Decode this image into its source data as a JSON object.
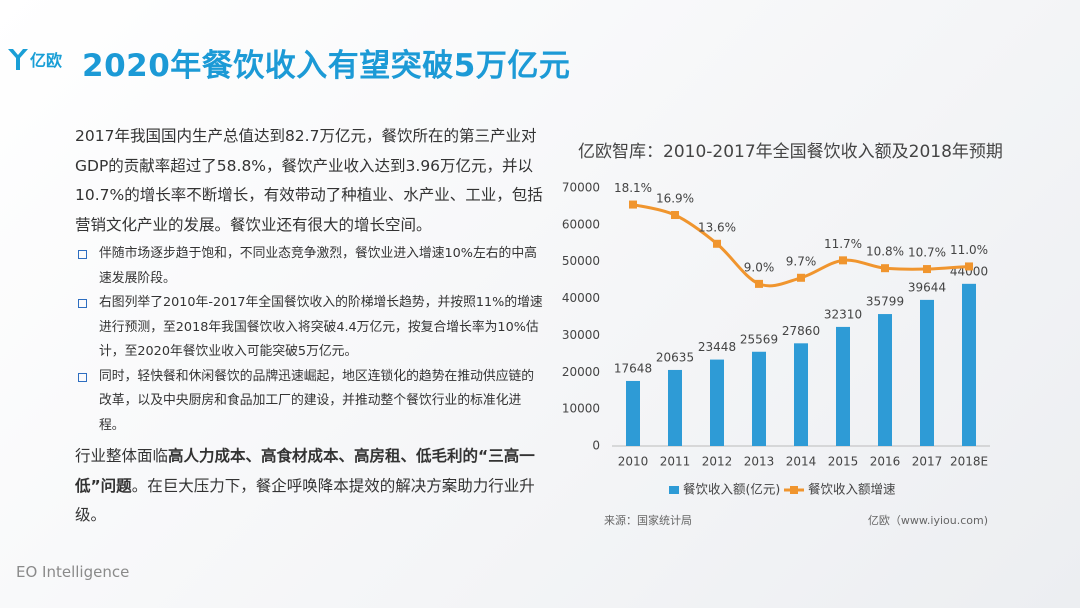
{
  "header": {
    "logo": "亿欧",
    "title": "2020年餐饮收入有望突破5万亿元"
  },
  "body": {
    "intro": "2017年我国国内生产总值达到82.7万亿元，餐饮所在的第三产业对GDP的贡献率超过了58.8%，餐饮产业收入达到3.96万亿元，并以10.7%的增长率不断增长，有效带动了种植业、水产业、工业，包括营销文化产业的发展。餐饮业还有很大的增长空间。",
    "bullets": [
      "伴随市场逐步趋于饱和，不同业态竞争激烈，餐饮业进入增速10%左右的中高速发展阶段。",
      "右图列举了2010年-2017年全国餐饮收入的阶梯增长趋势，并按照11%的增速进行预测，至2018年我国餐饮收入将突破4.4万亿元，按复合增长率为10%估计，至2020年餐饮业收入可能突破5万亿元。",
      "同时，轻快餐和休闲餐饮的品牌迅速崛起，地区连锁化的趋势在推动供应链的改革，以及中央厨房和食品加工厂的建设，并推动整个餐饮行业的标准化进程。"
    ],
    "closing": [
      "行业整体面临",
      "高人力成本、高食材成本、高房租、低毛利的“三高一低”问题",
      "。在巨大压力下，餐企呼唤降本提效的解决方案助力行业升级。"
    ]
  },
  "footer": "EO Intelligence",
  "chart_data": {
    "type": "bar",
    "title": "亿欧智库：2010-2017年全国餐饮收入额及2018年预期",
    "categories": [
      "2010",
      "2011",
      "2012",
      "2013",
      "2014",
      "2015",
      "2016",
      "2017",
      "2018E"
    ],
    "series": [
      {
        "name": "餐饮收入额(亿元)",
        "type": "bar",
        "color": "#2e9bd6",
        "values": [
          17648,
          20635,
          23448,
          25569,
          27860,
          32310,
          35799,
          39644,
          44000
        ]
      },
      {
        "name": "餐饮收入额增速",
        "type": "line",
        "axis": "y2",
        "color": "#f0952e",
        "values": [
          18.1,
          16.9,
          13.6,
          9.0,
          9.7,
          11.7,
          10.8,
          10.7,
          11.0
        ],
        "value_labels": [
          "18.1%",
          "16.9%",
          "13.6%",
          "9.0%",
          "9.7%",
          "11.7%",
          "10.8%",
          "10.7%",
          "11.0%"
        ]
      }
    ],
    "ylim": [
      0,
      70000
    ],
    "yticks": [
      0,
      10000,
      20000,
      30000,
      40000,
      50000,
      60000,
      70000
    ],
    "y2lim": [
      -9.6,
      20
    ],
    "source": "来源：国家统计局",
    "credit": "亿欧（www.iyiou.com)"
  }
}
